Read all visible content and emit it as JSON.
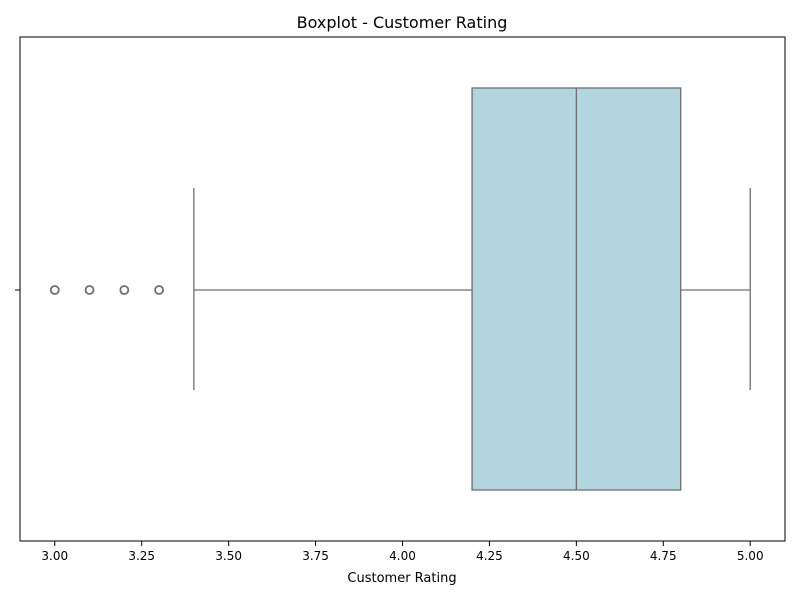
{
  "chart_data": {
    "type": "boxplot",
    "title": "Boxplot - Customer Rating",
    "xlabel": "Customer Rating",
    "ylabel": "",
    "xlim": [
      2.9,
      5.1
    ],
    "x_ticks": [
      "3.00",
      "3.25",
      "3.50",
      "3.75",
      "4.00",
      "4.25",
      "4.50",
      "4.75",
      "5.00"
    ],
    "grid": false,
    "series": [
      {
        "whisker_low": 3.4,
        "q1": 4.2,
        "median": 4.5,
        "q3": 4.8,
        "whisker_high": 5.0,
        "outliers": [
          3.0,
          3.1,
          3.2,
          3.3
        ]
      }
    ],
    "colors": {
      "box_fill": "#b3d5e0",
      "line": "#6e6e6e"
    }
  }
}
